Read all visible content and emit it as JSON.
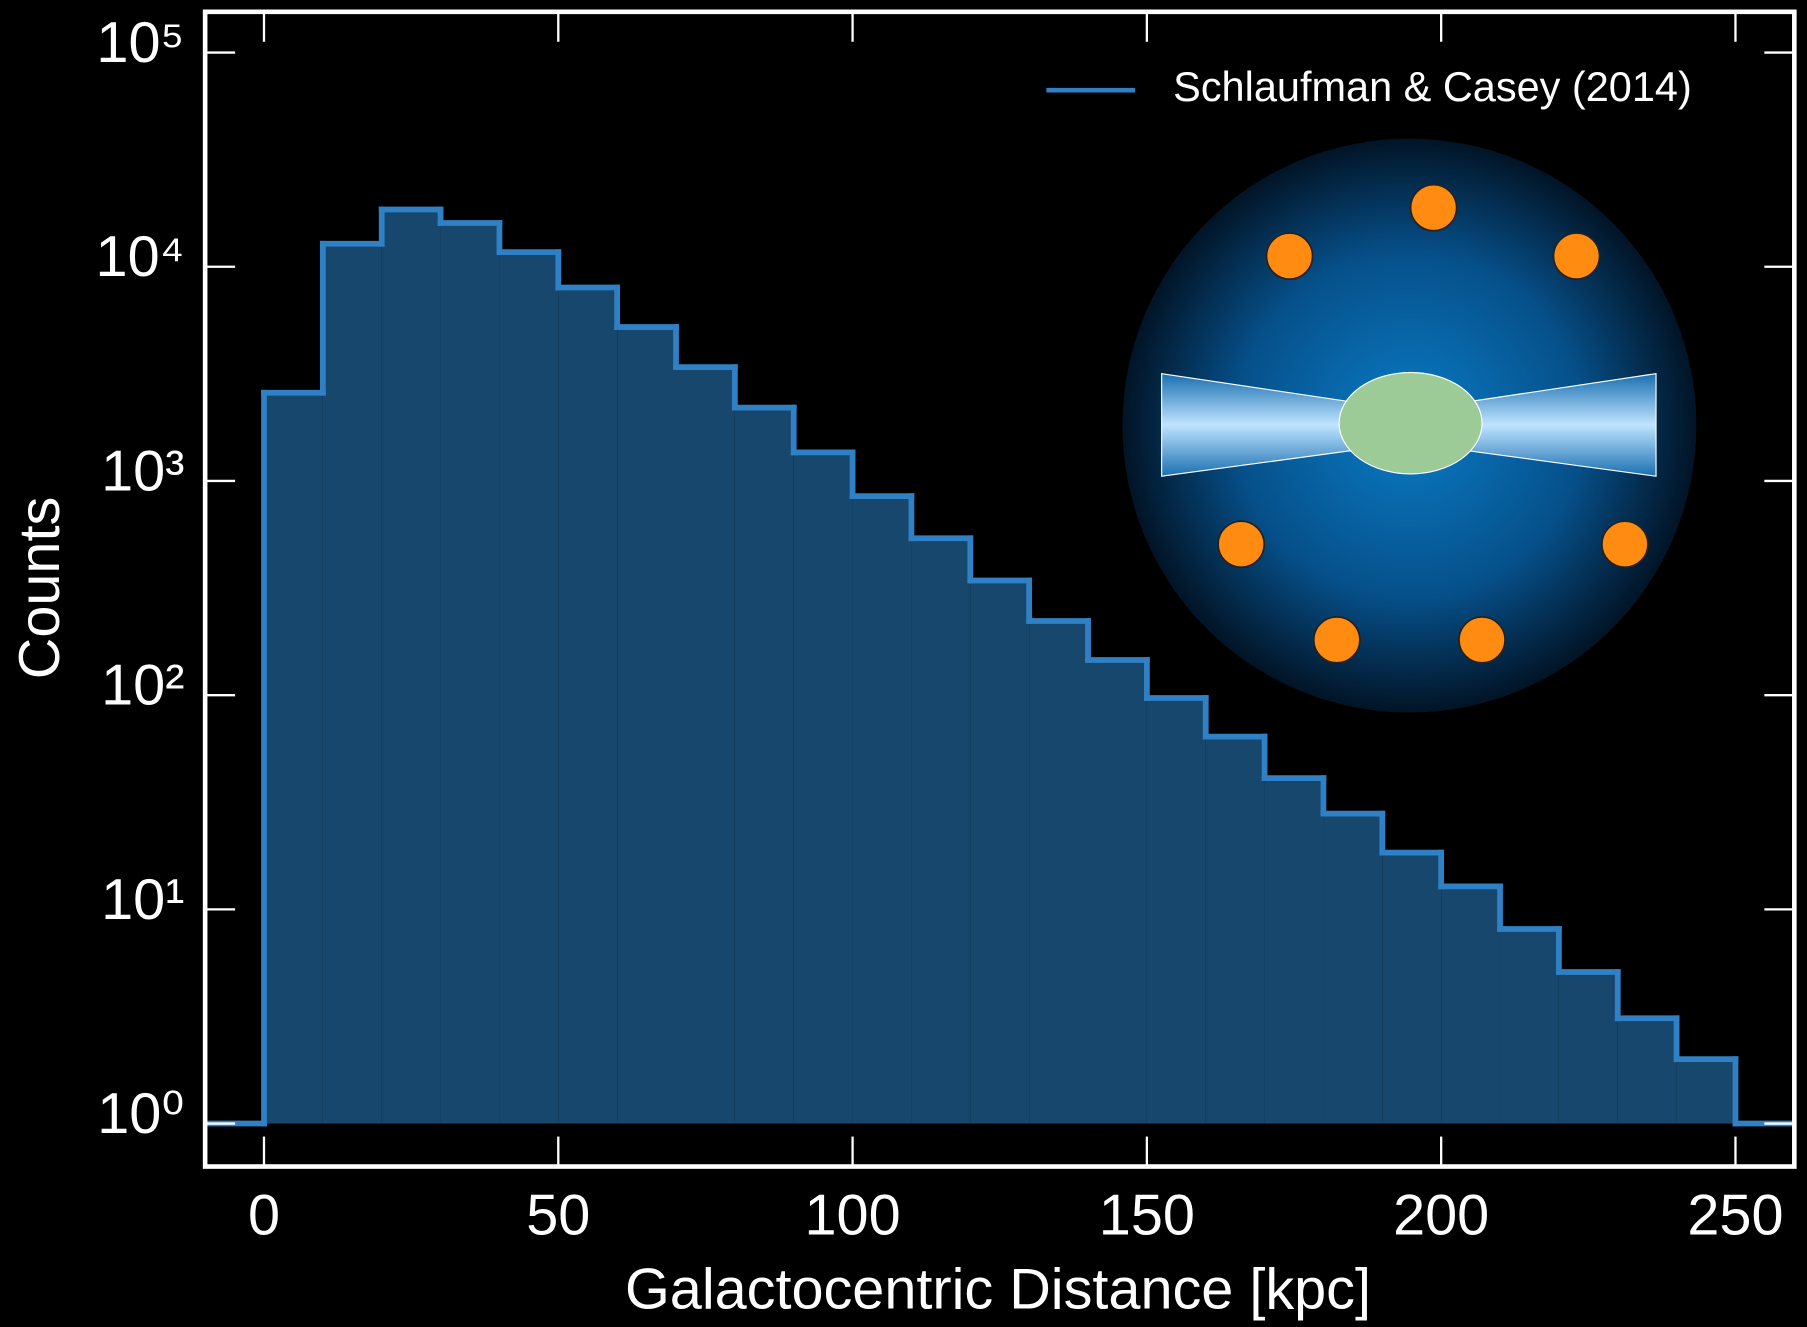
{
  "chart_data": {
    "type": "histogram",
    "x_label": "Galactocentric Distance  [kpc]",
    "y_label": "Counts",
    "bins": [
      0,
      10,
      20,
      30,
      40,
      50,
      60,
      70,
      80,
      90,
      100,
      110,
      120,
      130,
      140,
      150,
      160,
      170,
      180,
      190,
      200,
      210,
      220,
      230,
      240,
      250
    ],
    "series": [
      {
        "name": "Schlaufman & Casey (2014)",
        "color": "#2f80c4",
        "fill": "#17476c",
        "counts": [
          2580,
          12800,
          18500,
          16000,
          11700,
          8000,
          5230,
          3400,
          2200,
          1360,
          850,
          540,
          343,
          222,
          146,
          97,
          64,
          41,
          28,
          18.4,
          12.8,
          8.1,
          5.1,
          3.1,
          2.0
        ]
      }
    ],
    "xlim": [
      -10,
      260
    ],
    "ylim": [
      0.63,
      155000
    ],
    "log_y": true,
    "xticks": [
      0,
      50,
      100,
      150,
      200,
      250
    ],
    "yticks": [
      {
        "value": 1,
        "label": "10⁰"
      },
      {
        "value": 10,
        "label": "10¹"
      },
      {
        "value": 100,
        "label": "10²"
      },
      {
        "value": 1000,
        "label": "10³"
      },
      {
        "value": 10000,
        "label": "10⁴"
      },
      {
        "value": 100000,
        "label": "10⁵"
      }
    ],
    "legend": "upper right"
  }
}
